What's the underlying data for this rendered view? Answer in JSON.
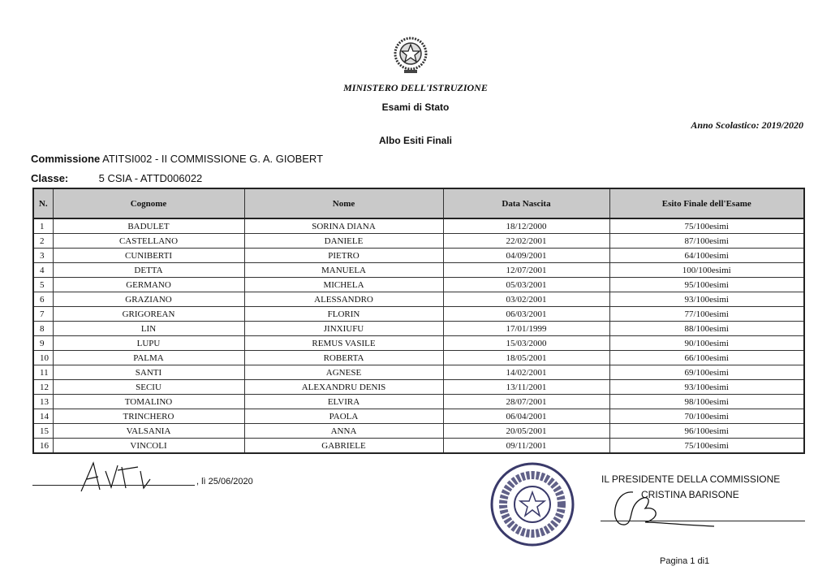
{
  "header": {
    "ministry": "MINISTERO DELL'ISTRUZIONE",
    "exam": "Esami di Stato",
    "school_year": "Anno Scolastico: 2019/2020",
    "title": "Albo Esiti Finali",
    "commission_label": "Commissione",
    "commission_value": "ATITSI002 -  II COMMISSIONE G. A. GIOBERT",
    "class_label": "Classe:",
    "class_value": "5 CSIA - ATTD006022"
  },
  "table": {
    "columns": [
      "N.",
      "Cognome",
      "Nome",
      "Data Nascita",
      "Esito Finale dell'Esame"
    ],
    "rows": [
      [
        "1",
        "BADULET",
        "SORINA DIANA",
        "18/12/2000",
        "75/100esimi"
      ],
      [
        "2",
        "CASTELLANO",
        "DANIELE",
        "22/02/2001",
        "87/100esimi"
      ],
      [
        "3",
        "CUNIBERTI",
        "PIETRO",
        "04/09/2001",
        "64/100esimi"
      ],
      [
        "4",
        "DETTA",
        "MANUELA",
        "12/07/2001",
        "100/100esimi"
      ],
      [
        "5",
        "GERMANO",
        "MICHELA",
        "05/03/2001",
        "95/100esimi"
      ],
      [
        "6",
        "GRAZIANO",
        "ALESSANDRO",
        "03/02/2001",
        "93/100esimi"
      ],
      [
        "7",
        "GRIGOREAN",
        "FLORIN",
        "06/03/2001",
        "77/100esimi"
      ],
      [
        "8",
        "LIN",
        "JINXIUFU",
        "17/01/1999",
        "88/100esimi"
      ],
      [
        "9",
        "LUPU",
        "REMUS VASILE",
        "15/03/2000",
        "90/100esimi"
      ],
      [
        "10",
        "PALMA",
        "ROBERTA",
        "18/05/2001",
        "66/100esimi"
      ],
      [
        "11",
        "SANTI",
        "AGNESE",
        "14/02/2001",
        "69/100esimi"
      ],
      [
        "12",
        "SECIU",
        "ALEXANDRU DENIS",
        "13/11/2001",
        "93/100esimi"
      ],
      [
        "13",
        "TOMALINO",
        "ELVIRA",
        "28/07/2001",
        "98/100esimi"
      ],
      [
        "14",
        "TRINCHERO",
        "PAOLA",
        "06/04/2001",
        "70/100esimi"
      ],
      [
        "15",
        "VALSANIA",
        "ANNA",
        "20/05/2001",
        "96/100esimi"
      ],
      [
        "16",
        "VINCOLI",
        "GABRIELE",
        "09/11/2001",
        "75/100esimi"
      ]
    ]
  },
  "footer": {
    "place_date": ", lì 25/06/2020",
    "president_title": "IL PRESIDENTE DELLA COMMISSIONE",
    "president_name": "CRISTINA BARISONE",
    "page": "Pagina 1 di1"
  },
  "colors": {
    "header_fill": "#c9c9c9",
    "stamp_ink": "#3a3a6a"
  },
  "icons": {
    "emblem": "italian-republic-emblem",
    "stamp": "official-stamp"
  }
}
